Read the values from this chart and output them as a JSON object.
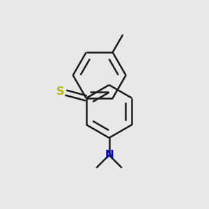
{
  "background_color": "#e8e8e8",
  "bond_color": "#1a1a1a",
  "sulfur_color": "#b8b800",
  "nitrogen_color": "#0000cc",
  "line_width": 1.8,
  "figsize": [
    3.0,
    3.0
  ],
  "dpi": 100
}
